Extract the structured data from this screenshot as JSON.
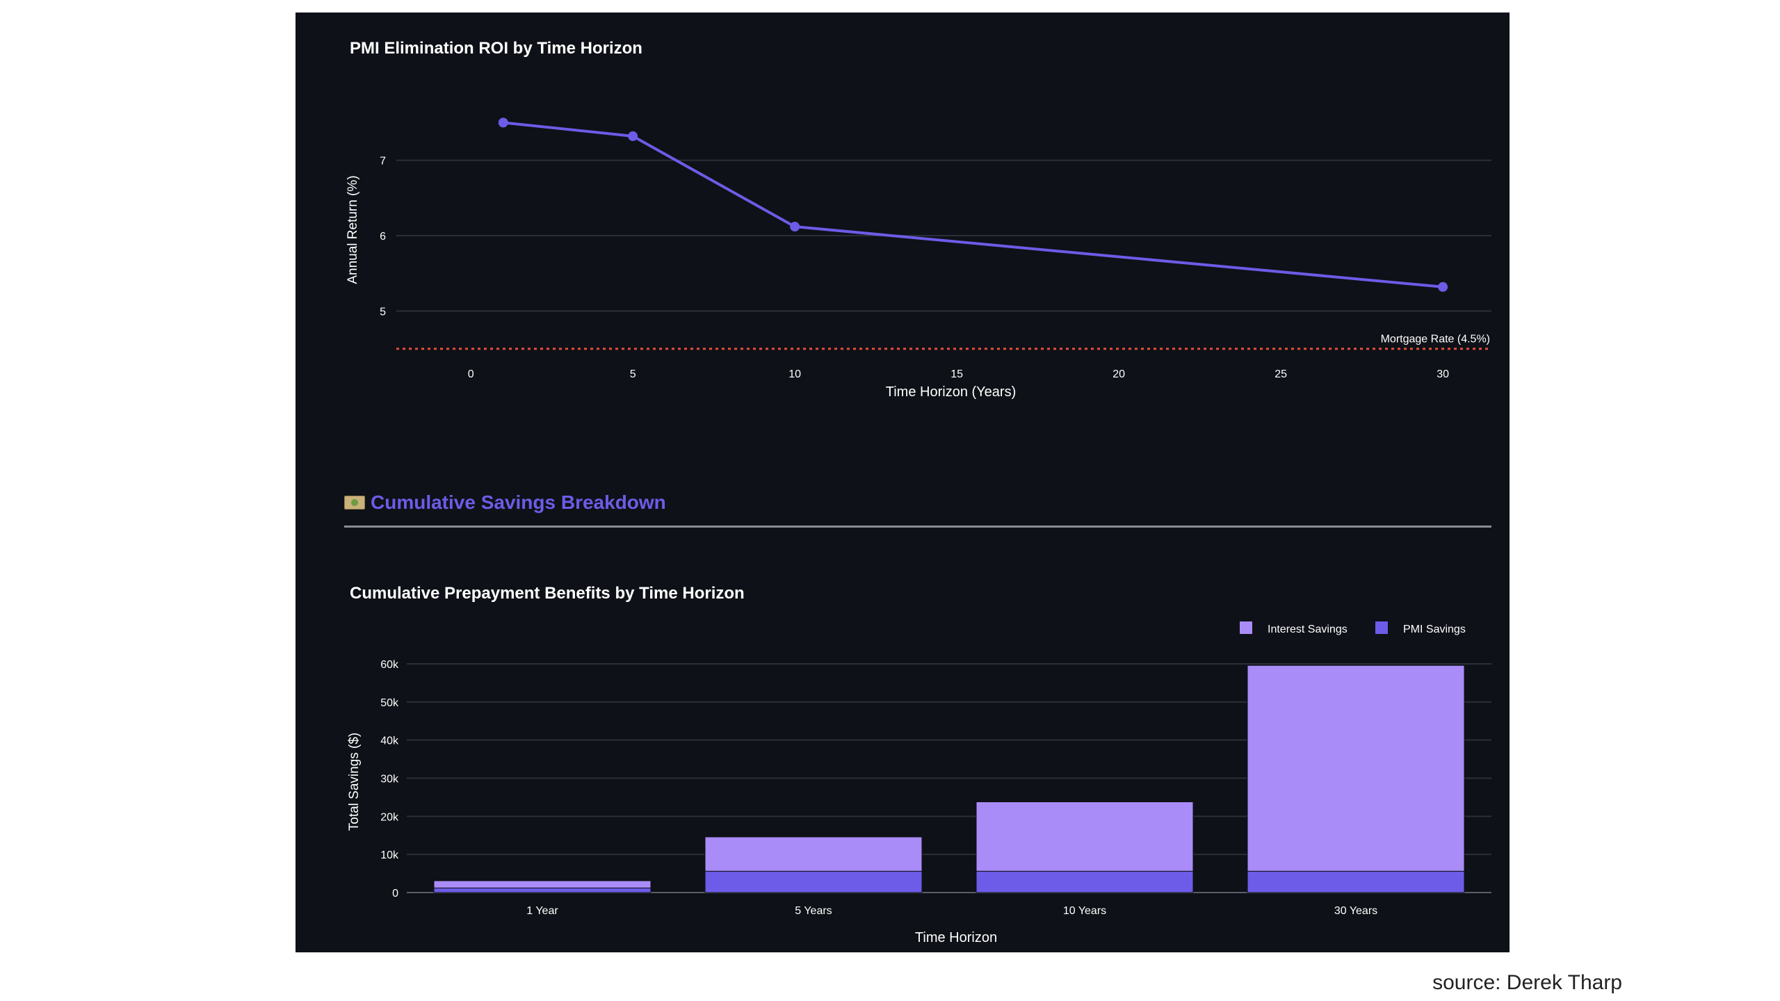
{
  "colors": {
    "background": "#0e1117",
    "line": "#6c5ce7",
    "pmi_savings": "#6c5ce7",
    "interest_savings": "#a98cf7",
    "mortgage_line": "#e74c3c",
    "grid": "#2b2f38",
    "text": "#ffffff"
  },
  "section": {
    "icon": "money-icon",
    "title": "Cumulative Savings Breakdown"
  },
  "source": "source: Derek Tharp",
  "chart_data": [
    {
      "type": "line",
      "title": "PMI Elimination ROI by Time Horizon",
      "xlabel": "Time Horizon (Years)",
      "ylabel": "Annual Return (%)",
      "xlim": [
        -2.3,
        31.5
      ],
      "ylim": [
        4.35,
        7.9
      ],
      "xticks": [
        0,
        5,
        10,
        15,
        20,
        25,
        30
      ],
      "yticks": [
        5,
        6,
        7
      ],
      "x": [
        1,
        5,
        10,
        30
      ],
      "y": [
        7.5,
        7.32,
        6.12,
        5.32
      ],
      "reference_line": {
        "y": 4.5,
        "label": "Mortgage Rate (4.5%)"
      },
      "grid": true
    },
    {
      "type": "bar",
      "stacked": true,
      "title": "Cumulative Prepayment Benefits by Time Horizon",
      "xlabel": "Time Horizon",
      "ylabel": "Total Savings ($)",
      "categories": [
        "1 Year",
        "5 Years",
        "10 Years",
        "30 Years"
      ],
      "series": [
        {
          "name": "PMI Savings",
          "values": [
            1200,
            5600,
            5600,
            5600
          ]
        },
        {
          "name": "Interest Savings",
          "values": [
            1900,
            9000,
            18200,
            54000
          ]
        }
      ],
      "ylim": [
        0,
        60000
      ],
      "yticks": [
        0,
        10000,
        20000,
        30000,
        40000,
        50000,
        60000
      ],
      "ytick_labels": [
        "0",
        "10k",
        "20k",
        "30k",
        "40k",
        "50k",
        "60k"
      ],
      "legend": [
        "Interest Savings",
        "PMI Savings"
      ],
      "legend_position": "top-right",
      "grid": true
    }
  ]
}
